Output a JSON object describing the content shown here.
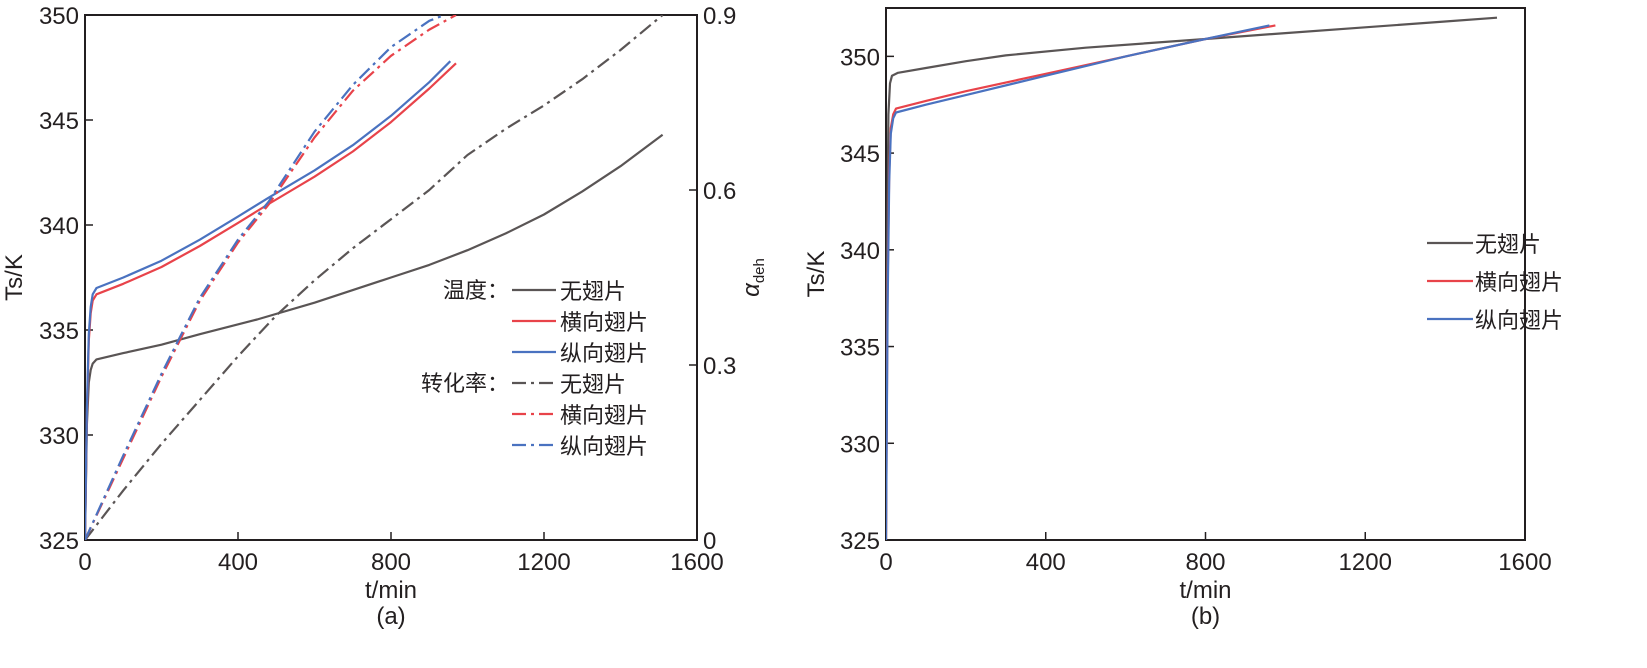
{
  "chart_data": [
    {
      "type": "line",
      "panel_label": "(a)",
      "xlabel": "t/min",
      "ylabel": "Ts/K",
      "ylabel_main": "T",
      "ylabel_sub": "s",
      "ylabel_unit": "/K",
      "y2label_main": "α",
      "y2label_sub": "deh",
      "xlim": [
        0,
        1600
      ],
      "ylim": [
        325,
        350
      ],
      "y2lim": [
        0,
        0.9
      ],
      "xticks": [
        "0",
        "400",
        "800",
        "1200",
        "1600"
      ],
      "yticks": [
        "325",
        "330",
        "335",
        "340",
        "345",
        "350"
      ],
      "y2ticks": [
        "0",
        "0.3",
        "0.6",
        "0.9"
      ],
      "legend_position": "lower-right",
      "legend_group_temp": "温度：",
      "legend_group_conv": "转化率：",
      "series": [
        {
          "name": "无翅片",
          "group": "temp",
          "axis": "left",
          "color": "#5a5555",
          "dash": "solid",
          "x": [
            0,
            5,
            10,
            15,
            20,
            30,
            100,
            200,
            300,
            450,
            600,
            700,
            800,
            900,
            1000,
            1100,
            1200,
            1300,
            1400,
            1510
          ],
          "y": [
            325,
            330.5,
            332.5,
            333.1,
            333.4,
            333.6,
            333.9,
            334.3,
            334.8,
            335.5,
            336.3,
            336.9,
            337.5,
            338.1,
            338.8,
            339.6,
            340.5,
            341.6,
            342.8,
            344.3
          ]
        },
        {
          "name": "横向翅片",
          "group": "temp",
          "axis": "left",
          "color": "#e8434a",
          "dash": "solid",
          "x": [
            0,
            5,
            10,
            15,
            20,
            30,
            100,
            200,
            300,
            400,
            480,
            600,
            700,
            800,
            900,
            970
          ],
          "y": [
            325,
            331,
            334.5,
            335.8,
            336.4,
            336.7,
            337.2,
            338.0,
            339.0,
            340.1,
            341.0,
            342.3,
            343.5,
            344.9,
            346.5,
            347.7
          ]
        },
        {
          "name": "纵向翅片",
          "group": "temp",
          "axis": "left",
          "color": "#4a72c0",
          "dash": "solid",
          "x": [
            0,
            5,
            10,
            15,
            20,
            30,
            100,
            200,
            300,
            400,
            480,
            600,
            700,
            800,
            900,
            955
          ],
          "y": [
            325,
            331.3,
            334.8,
            336.1,
            336.7,
            337.0,
            337.5,
            338.3,
            339.3,
            340.4,
            341.3,
            342.6,
            343.8,
            345.2,
            346.8,
            347.8
          ]
        },
        {
          "name": "无翅片",
          "group": "conv",
          "axis": "right",
          "color": "#5a5555",
          "dash": "dashdot",
          "x": [
            0,
            100,
            200,
            300,
            400,
            450,
            500,
            600,
            700,
            800,
            900,
            1000,
            1100,
            1200,
            1300,
            1400,
            1510
          ],
          "y": [
            0,
            0.085,
            0.165,
            0.24,
            0.315,
            0.35,
            0.385,
            0.445,
            0.5,
            0.55,
            0.6,
            0.66,
            0.705,
            0.745,
            0.79,
            0.84,
            0.9
          ]
        },
        {
          "name": "横向翅片",
          "group": "conv",
          "axis": "right",
          "color": "#e8434a",
          "dash": "dashdot",
          "x": [
            0,
            100,
            200,
            250,
            300,
            400,
            480,
            600,
            700,
            800,
            900,
            970
          ],
          "y": [
            0,
            0.14,
            0.28,
            0.345,
            0.41,
            0.51,
            0.575,
            0.69,
            0.77,
            0.83,
            0.875,
            0.9
          ]
        },
        {
          "name": "纵向翅片",
          "group": "conv",
          "axis": "right",
          "color": "#4a72c0",
          "dash": "dashdot",
          "x": [
            0,
            100,
            200,
            250,
            300,
            400,
            480,
            600,
            700,
            800,
            900,
            940
          ],
          "y": [
            0,
            0.145,
            0.285,
            0.35,
            0.415,
            0.515,
            0.58,
            0.7,
            0.78,
            0.845,
            0.89,
            0.9
          ]
        }
      ]
    },
    {
      "type": "line",
      "panel_label": "(b)",
      "xlabel": "t/min",
      "ylabel": "Ts/K",
      "ylabel_main": "T",
      "ylabel_sub": "s",
      "ylabel_unit": "/K",
      "xlim": [
        0,
        1600
      ],
      "ylim": [
        325,
        352.5
      ],
      "xticks": [
        "0",
        "400",
        "800",
        "1200",
        "1600"
      ],
      "yticks": [
        "325",
        "330",
        "335",
        "340",
        "345",
        "350"
      ],
      "legend_position": "right",
      "series": [
        {
          "name": "无翅片",
          "color": "#5a5555",
          "dash": "solid",
          "x": [
            0,
            3,
            6,
            10,
            15,
            30,
            100,
            200,
            300,
            500,
            800,
            1000,
            1200,
            1400,
            1530
          ],
          "y": [
            325,
            340,
            347,
            348.6,
            349.0,
            349.15,
            349.4,
            349.75,
            350.05,
            350.45,
            350.9,
            351.2,
            351.5,
            351.8,
            352.0
          ]
        },
        {
          "name": "横向翅片",
          "color": "#e8434a",
          "dash": "solid",
          "x": [
            0,
            4,
            8,
            12,
            18,
            25,
            100,
            200,
            400,
            600,
            800,
            975
          ],
          "y": [
            325,
            338,
            344,
            346.3,
            347.0,
            347.3,
            347.7,
            348.2,
            349.1,
            350.0,
            350.9,
            351.6
          ]
        },
        {
          "name": "纵向翅片",
          "color": "#4a72c0",
          "dash": "solid",
          "x": [
            0,
            4,
            8,
            12,
            18,
            25,
            100,
            200,
            400,
            600,
            800,
            960
          ],
          "y": [
            325,
            337,
            343.5,
            346.0,
            346.8,
            347.1,
            347.5,
            348.0,
            349.0,
            350.0,
            350.9,
            351.6
          ]
        }
      ]
    }
  ]
}
